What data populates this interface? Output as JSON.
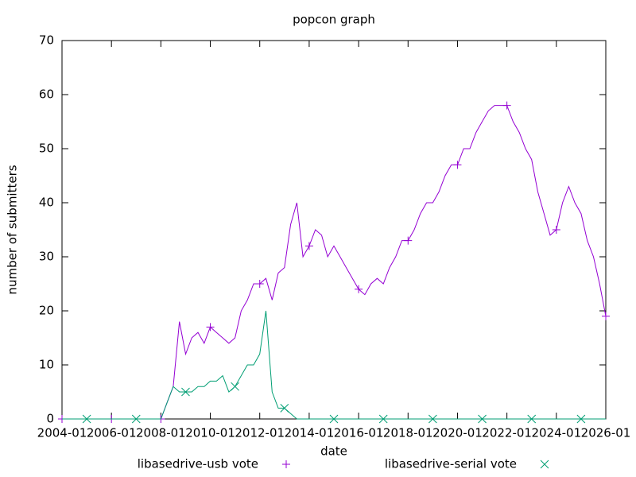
{
  "chart_data": {
    "type": "line",
    "title": "popcon graph",
    "x_label": "date",
    "y_label": "number of submitters",
    "x": [
      "2004-01",
      "2004-04",
      "2004-07",
      "2004-10",
      "2005-01",
      "2005-04",
      "2005-07",
      "2005-10",
      "2006-01",
      "2006-04",
      "2006-07",
      "2006-10",
      "2007-01",
      "2007-04",
      "2007-07",
      "2007-10",
      "2008-01",
      "2008-04",
      "2008-07",
      "2008-10",
      "2009-01",
      "2009-04",
      "2009-07",
      "2009-10",
      "2010-01",
      "2010-04",
      "2010-07",
      "2010-10",
      "2011-01",
      "2011-04",
      "2011-07",
      "2011-10",
      "2012-01",
      "2012-04",
      "2012-07",
      "2012-10",
      "2013-01",
      "2013-04",
      "2013-07",
      "2013-10",
      "2014-01",
      "2014-04",
      "2014-07",
      "2014-10",
      "2015-01",
      "2015-04",
      "2015-07",
      "2015-10",
      "2016-01",
      "2016-04",
      "2016-07",
      "2016-10",
      "2017-01",
      "2017-04",
      "2017-07",
      "2017-10",
      "2018-01",
      "2018-04",
      "2018-07",
      "2018-10",
      "2019-01",
      "2019-04",
      "2019-07",
      "2019-10",
      "2020-01",
      "2020-04",
      "2020-07",
      "2020-10",
      "2021-01",
      "2021-04",
      "2021-07",
      "2021-10",
      "2022-01",
      "2022-04",
      "2022-07",
      "2022-10",
      "2023-01",
      "2023-04",
      "2023-07",
      "2023-10",
      "2024-01",
      "2024-04",
      "2024-07",
      "2024-10",
      "2025-01",
      "2025-04",
      "2025-07",
      "2025-10",
      "2026-01"
    ],
    "series": [
      {
        "name": "libasedrive-usb vote",
        "color": "#9400d3",
        "marker": "plus",
        "values": [
          0,
          0,
          0,
          0,
          0,
          0,
          0,
          0,
          0,
          0,
          0,
          0,
          0,
          0,
          0,
          0,
          0,
          3,
          6,
          18,
          12,
          15,
          16,
          14,
          17,
          16,
          15,
          14,
          15,
          20,
          22,
          25,
          25,
          26,
          22,
          27,
          28,
          36,
          40,
          30,
          32,
          35,
          34,
          30,
          32,
          30,
          28,
          26,
          24,
          23,
          25,
          26,
          25,
          28,
          30,
          33,
          33,
          35,
          38,
          40,
          40,
          42,
          45,
          47,
          47,
          50,
          50,
          53,
          55,
          57,
          58,
          58,
          58,
          55,
          53,
          50,
          48,
          42,
          38,
          34,
          35,
          40,
          43,
          40,
          38,
          33,
          30,
          25,
          19
        ]
      },
      {
        "name": "libasedrive-serial vote",
        "color": "#009e73",
        "marker": "cross",
        "values": [
          0,
          0,
          0,
          0,
          0,
          0,
          0,
          0,
          0,
          0,
          0,
          0,
          0,
          0,
          0,
          0,
          0,
          3,
          6,
          5,
          5,
          5,
          6,
          6,
          7,
          7,
          8,
          5,
          6,
          8,
          10,
          10,
          12,
          20,
          5,
          2,
          2,
          1,
          0,
          0,
          0,
          0,
          0,
          0,
          0,
          0,
          0,
          0,
          0,
          0,
          0,
          0,
          0,
          0,
          0,
          0,
          0,
          0,
          0,
          0,
          0,
          0,
          0,
          0,
          0,
          0,
          0,
          0,
          0,
          0,
          0,
          0,
          0,
          0,
          0,
          0,
          0,
          0,
          0,
          0,
          0,
          0,
          0,
          0,
          0,
          0,
          0,
          0,
          0
        ]
      }
    ],
    "xlim": [
      "2004-01",
      "2026-01"
    ],
    "xticks": [
      "2004-01",
      "2006-01",
      "2008-01",
      "2010-01",
      "2012-01",
      "2014-01",
      "2016-01",
      "2018-01",
      "2020-01",
      "2022-01",
      "2024-01",
      "2026-01"
    ],
    "ylim": [
      0,
      70
    ],
    "yticks": [
      0,
      10,
      20,
      30,
      40,
      50,
      60,
      70
    ],
    "legend": "bottom"
  }
}
